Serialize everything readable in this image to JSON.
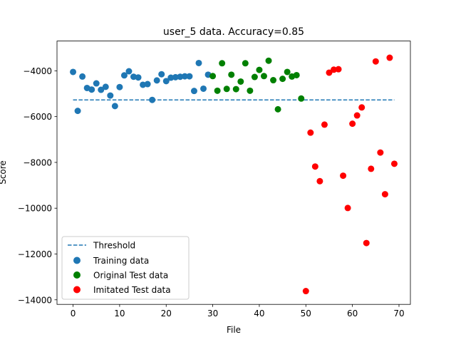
{
  "chart_data": {
    "type": "scatter",
    "title": "user_5 data. Accuracy=0.85",
    "xlabel": "File",
    "ylabel": "Score",
    "xlim": [
      -3.45,
      72.45
    ],
    "ylim": [
      -14200,
      -2700
    ],
    "xticks": [
      0,
      10,
      20,
      30,
      40,
      50,
      60,
      70
    ],
    "yticks": [
      -14000,
      -12000,
      -10000,
      -8000,
      -6000,
      -4000
    ],
    "grid": false,
    "legend_position": "lower-left",
    "threshold": {
      "name": "Threshold",
      "color": "#1f77b4",
      "style": "dashed",
      "x": [
        0,
        69
      ],
      "y": [
        -5270,
        -5270
      ]
    },
    "series": [
      {
        "name": "Training data",
        "color": "#1f77b4",
        "x": [
          0,
          1,
          2,
          3,
          4,
          5,
          6,
          7,
          8,
          9,
          10,
          11,
          12,
          13,
          14,
          15,
          16,
          17,
          18,
          19,
          20,
          21,
          22,
          23,
          24,
          25,
          26,
          27,
          28,
          29
        ],
        "y": [
          -4050,
          -5750,
          -4250,
          -4750,
          -4820,
          -4550,
          -4830,
          -4700,
          -5080,
          -5540,
          -4710,
          -4200,
          -4020,
          -4260,
          -4290,
          -4610,
          -4580,
          -5270,
          -4420,
          -4150,
          -4450,
          -4300,
          -4280,
          -4260,
          -4240,
          -4240,
          -4880,
          -3660,
          -4780,
          -4170
        ]
      },
      {
        "name": "Original Test data",
        "color": "#008000",
        "x": [
          30,
          31,
          32,
          33,
          34,
          35,
          36,
          37,
          38,
          39,
          40,
          41,
          42,
          43,
          44,
          45,
          46,
          47,
          48,
          49
        ],
        "y": [
          -4230,
          -4870,
          -3670,
          -4790,
          -4170,
          -4800,
          -4470,
          -3670,
          -4870,
          -4270,
          -3960,
          -4230,
          -3560,
          -4410,
          -5680,
          -4350,
          -4050,
          -4250,
          -4190,
          -5210
        ]
      },
      {
        "name": "Imitated Test data",
        "color": "#ff0000",
        "x": [
          50,
          51,
          52,
          53,
          54,
          55,
          56,
          57,
          58,
          59,
          60,
          61,
          62,
          63,
          64,
          65,
          66,
          67,
          68,
          69
        ],
        "y": [
          -13620,
          -6700,
          -8180,
          -8820,
          -6350,
          -4080,
          -3950,
          -3930,
          -8580,
          -9990,
          -6310,
          -5950,
          -5600,
          -11520,
          -8280,
          -3590,
          -7570,
          -9390,
          -3430,
          -8060
        ]
      }
    ]
  }
}
